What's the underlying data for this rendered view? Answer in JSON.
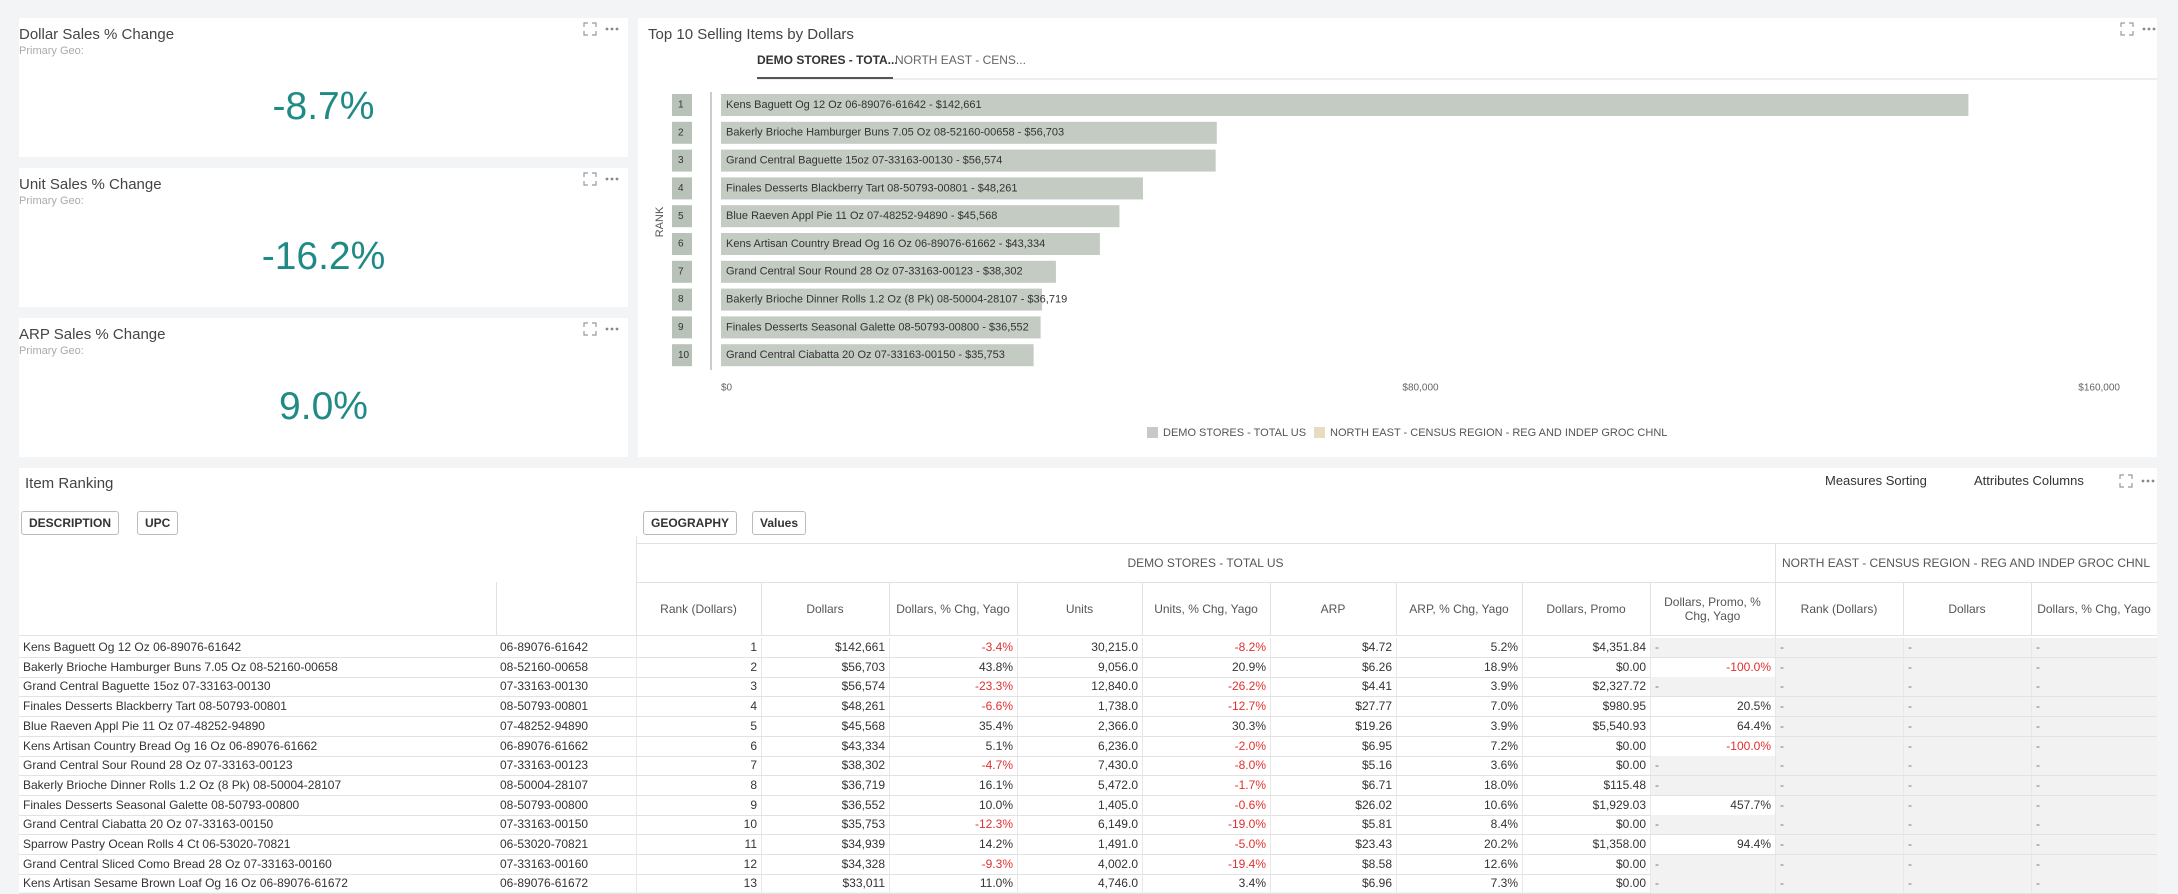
{
  "kpis": [
    {
      "title": "Dollar Sales % Change",
      "subtitle": "Primary Geo:",
      "value": "-8.7%"
    },
    {
      "title": "Unit Sales % Change",
      "subtitle": "Primary Geo:",
      "value": "-16.2%"
    },
    {
      "title": "ARP Sales % Change",
      "subtitle": "Primary Geo:",
      "value": "9.0%"
    }
  ],
  "chart_data": {
    "type": "bar",
    "orientation": "horizontal",
    "title": "Top 10 Selling Items by Dollars",
    "tabs": [
      "DEMO STORES - TOTA...",
      "NORTH EAST - CENS..."
    ],
    "y_label": "RANK",
    "categories": [
      "1",
      "2",
      "3",
      "4",
      "5",
      "6",
      "7",
      "8",
      "9",
      "10"
    ],
    "series": [
      {
        "name": "DEMO STORES - TOTAL US",
        "color": "#c3cbc3",
        "values": [
          142661,
          56703,
          56574,
          48261,
          45568,
          43334,
          38302,
          36719,
          36552,
          35753
        ],
        "value_labels": [
          "Kens Baguett Og 12 Oz 06-89076-61642 - $142,661",
          "Bakerly Brioche Hamburger Buns 7.05 Oz 08-52160-00658 - $56,703",
          "Grand Central Baguette 15oz 07-33163-00130 - $56,574",
          "Finales Desserts Blackberry Tart 08-50793-00801 - $48,261",
          "Blue Raeven Appl Pie 11 Oz 07-48252-94890 - $45,568",
          "Kens Artisan Country Bread Og 16 Oz 06-89076-61662 - $43,334",
          "Grand Central Sour Round 28 Oz 07-33163-00123 - $38,302",
          "Bakerly Brioche Dinner Rolls 1.2 Oz (8 Pk) 08-50004-28107 - $36,719",
          "Finales Desserts Seasonal Galette 08-50793-00800 - $36,552",
          "Grand Central Ciabatta 20 Oz 07-33163-00150 - $35,753"
        ]
      },
      {
        "name": "NORTH EAST - CENSUS REGION - REG AND INDEP GROC CHNL",
        "color": "#e8dcc0",
        "values": [
          null,
          null,
          null,
          null,
          null,
          null,
          null,
          null,
          null,
          null
        ]
      }
    ],
    "xlim": [
      0,
      160000
    ],
    "xticks": [
      {
        "value": 0,
        "label": "$0"
      },
      {
        "value": 80000,
        "label": "$80,000"
      },
      {
        "value": 160000,
        "label": "$160,000"
      }
    ],
    "legend": "bottom"
  },
  "table": {
    "title": "Item Ranking",
    "buttons": [
      "Measures Sorting",
      "Attributes Columns"
    ],
    "row_filters": [
      "DESCRIPTION",
      "UPC"
    ],
    "column_filters": [
      "GEOGRAPHY",
      "Values"
    ],
    "groups": [
      "DEMO STORES - TOTAL US",
      "NORTH EAST - CENSUS REGION - REG AND INDEP GROC CHNL"
    ],
    "columns": [
      "Rank (Dollars)",
      "Dollars",
      "Dollars, % Chg, Yago",
      "Units",
      "Units, % Chg, Yago",
      "ARP",
      "ARP, % Chg, Yago",
      "Dollars, Promo",
      "Dollars, Promo, % Chg, Yago",
      "Rank (Dollars)",
      "Dollars",
      "Dollars, % Chg, Yago"
    ],
    "rows": [
      [
        "Kens Baguett Og 12 Oz 06-89076-61642",
        "06-89076-61642",
        "1",
        "$142,661",
        "-3.4%",
        "30,215.0",
        "-8.2%",
        "$4.72",
        "5.2%",
        "$4,351.84",
        "-",
        "-",
        "-",
        "-"
      ],
      [
        "Bakerly Brioche Hamburger Buns 7.05 Oz 08-52160-00658",
        "08-52160-00658",
        "2",
        "$56,703",
        "43.8%",
        "9,056.0",
        "20.9%",
        "$6.26",
        "18.9%",
        "$0.00",
        "-100.0%",
        "-",
        "-",
        "-"
      ],
      [
        "Grand Central Baguette 15oz 07-33163-00130",
        "07-33163-00130",
        "3",
        "$56,574",
        "-23.3%",
        "12,840.0",
        "-26.2%",
        "$4.41",
        "3.9%",
        "$2,327.72",
        "-",
        "-",
        "-",
        "-"
      ],
      [
        "Finales Desserts Blackberry Tart 08-50793-00801",
        "08-50793-00801",
        "4",
        "$48,261",
        "-6.6%",
        "1,738.0",
        "-12.7%",
        "$27.77",
        "7.0%",
        "$980.95",
        "20.5%",
        "-",
        "-",
        "-"
      ],
      [
        "Blue Raeven Appl Pie 11 Oz 07-48252-94890",
        "07-48252-94890",
        "5",
        "$45,568",
        "35.4%",
        "2,366.0",
        "30.3%",
        "$19.26",
        "3.9%",
        "$5,540.93",
        "64.4%",
        "-",
        "-",
        "-"
      ],
      [
        "Kens Artisan Country Bread Og 16 Oz 06-89076-61662",
        "06-89076-61662",
        "6",
        "$43,334",
        "5.1%",
        "6,236.0",
        "-2.0%",
        "$6.95",
        "7.2%",
        "$0.00",
        "-100.0%",
        "-",
        "-",
        "-"
      ],
      [
        "Grand Central Sour Round 28 Oz 07-33163-00123",
        "07-33163-00123",
        "7",
        "$38,302",
        "-4.7%",
        "7,430.0",
        "-8.0%",
        "$5.16",
        "3.6%",
        "$0.00",
        "-",
        "-",
        "-",
        "-"
      ],
      [
        "Bakerly Brioche Dinner Rolls 1.2 Oz (8 Pk) 08-50004-28107",
        "08-50004-28107",
        "8",
        "$36,719",
        "16.1%",
        "5,472.0",
        "-1.7%",
        "$6.71",
        "18.0%",
        "$115.48",
        "-",
        "-",
        "-",
        "-"
      ],
      [
        "Finales Desserts Seasonal Galette 08-50793-00800",
        "08-50793-00800",
        "9",
        "$36,552",
        "10.0%",
        "1,405.0",
        "-0.6%",
        "$26.02",
        "10.6%",
        "$1,929.03",
        "457.7%",
        "-",
        "-",
        "-"
      ],
      [
        "Grand Central Ciabatta 20 Oz 07-33163-00150",
        "07-33163-00150",
        "10",
        "$35,753",
        "-12.3%",
        "6,149.0",
        "-19.0%",
        "$5.81",
        "8.4%",
        "$0.00",
        "-",
        "-",
        "-",
        "-"
      ],
      [
        "Sparrow Pastry Ocean Rolls 4 Ct 06-53020-70821",
        "06-53020-70821",
        "11",
        "$34,939",
        "14.2%",
        "1,491.0",
        "-5.0%",
        "$23.43",
        "20.2%",
        "$1,358.00",
        "94.4%",
        "-",
        "-",
        "-"
      ],
      [
        "Grand Central Sliced Como Bread 28 Oz 07-33163-00160",
        "07-33163-00160",
        "12",
        "$34,328",
        "-9.3%",
        "4,002.0",
        "-19.4%",
        "$8.58",
        "12.6%",
        "$0.00",
        "-",
        "-",
        "-",
        "-"
      ],
      [
        "Kens Artisan Sesame Brown Loaf Og 16 Oz 06-89076-61672",
        "06-89076-61672",
        "13",
        "$33,011",
        "11.0%",
        "4,746.0",
        "3.4%",
        "$6.96",
        "7.3%",
        "$0.00",
        "-",
        "-",
        "-",
        "-"
      ]
    ]
  }
}
